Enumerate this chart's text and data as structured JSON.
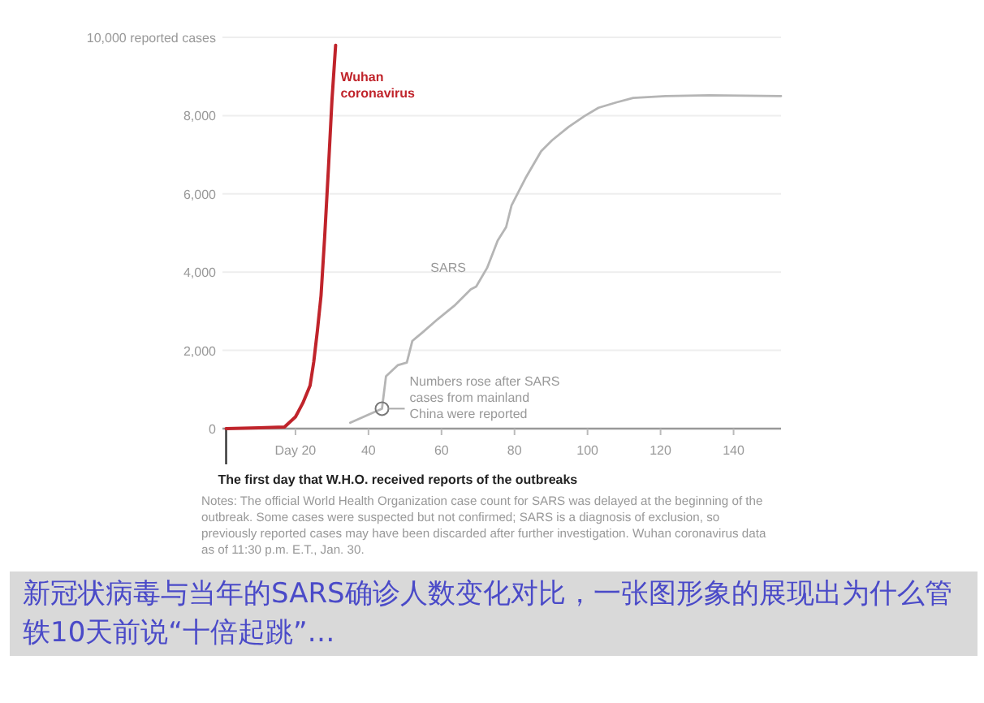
{
  "chart_data": {
    "type": "line",
    "series": [
      {
        "name": "Wuhan coronavirus",
        "color": "#c0242b",
        "x": [
          1,
          10,
          17,
          20,
          22,
          24,
          25,
          26,
          27,
          28,
          29,
          30,
          31
        ],
        "values": [
          0,
          20,
          40,
          300,
          650,
          1100,
          1700,
          2500,
          3400,
          4900,
          6600,
          8400,
          9800
        ]
      },
      {
        "name": "SARS",
        "color": "#b5b5b5",
        "x": [
          35,
          43.7,
          44.8,
          48,
          50.5,
          52,
          54.7,
          59,
          63.5,
          68,
          69.5,
          72.5,
          75.4,
          77.7,
          79.2,
          83,
          87.3,
          90.3,
          94.8,
          99.2,
          103,
          108,
          112.5,
          121.4,
          133.3,
          153
        ],
        "values": [
          150,
          510,
          1340,
          1620,
          1690,
          2240,
          2450,
          2800,
          3140,
          3560,
          3630,
          4110,
          4810,
          5150,
          5710,
          6400,
          7090,
          7370,
          7710,
          7990,
          8200,
          8340,
          8450,
          8500,
          8520,
          8500
        ]
      }
    ],
    "xlim": [
      0,
      153
    ],
    "xticks": [
      {
        "value": 20,
        "label": "Day 20"
      },
      40,
      60,
      80,
      100,
      120,
      140
    ],
    "ylim": [
      0,
      10000
    ],
    "yticks": [
      0,
      {
        "value": 2000,
        "label": "2,000"
      },
      {
        "value": 4000,
        "label": "4,000"
      },
      {
        "value": 6000,
        "label": "6,000"
      },
      {
        "value": 8000,
        "label": "8,000"
      },
      {
        "value": 10000,
        "label": "10,000 reported cases"
      }
    ],
    "grid": "y",
    "ref_lines": [
      {
        "axis": "x",
        "value": 1,
        "label": "The first day that W.H.O. received reports of the outbreaks"
      }
    ],
    "annotations": [
      {
        "text": "Numbers rose after SARS cases from mainland China were reported",
        "x": 43.7,
        "y": 510
      },
      "Notes: The official World Health Organization case count for SARS was delayed at the beginning of the outbreak. Some cases were suspected but not confirmed; SARS is a diagnosis of exclusion, so previously reported cases may have been discarded after further investigation. Wuhan coronavirus data as of 11:30 p.m. E.T., Jan. 30.",
      "新冠状病毒与当年的SARS确诊人数变化对比，一张图形象的展现出为什么管轶10天前说“十倍起跳”…"
    ]
  }
}
